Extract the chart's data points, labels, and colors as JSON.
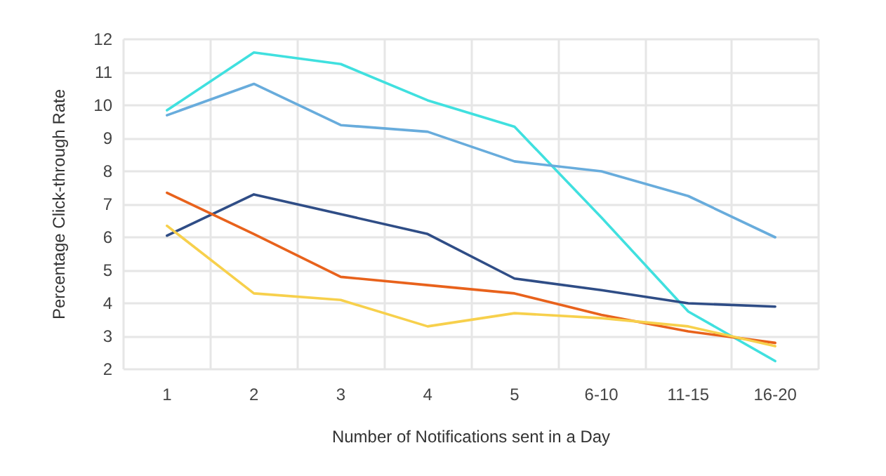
{
  "chart_data": {
    "type": "line",
    "xlabel": "Number of Notifications sent in a Day",
    "ylabel": "Percentage Click-through Rate",
    "categories": [
      "1",
      "2",
      "3",
      "4",
      "5",
      "6-10",
      "11-15",
      "16-20"
    ],
    "series": [
      {
        "color": "#40e0df",
        "values": [
          9.85,
          11.6,
          11.25,
          10.15,
          9.35,
          6.6,
          3.75,
          2.25
        ]
      },
      {
        "color": "#68acdc",
        "values": [
          9.7,
          10.65,
          9.4,
          9.2,
          8.3,
          8.0,
          7.25,
          6.0
        ]
      },
      {
        "color": "#2f4d86",
        "values": [
          6.05,
          7.3,
          6.7,
          6.1,
          4.75,
          4.4,
          4.0,
          3.9
        ]
      },
      {
        "color": "#e8621c",
        "values": [
          7.35,
          6.1,
          4.8,
          4.55,
          4.3,
          3.65,
          3.15,
          2.8
        ]
      },
      {
        "color": "#f7d04c",
        "values": [
          6.35,
          4.3,
          4.1,
          3.3,
          3.7,
          3.55,
          3.3,
          2.7
        ]
      }
    ],
    "ylim": [
      2,
      12
    ],
    "yticks": [
      2,
      3,
      4,
      5,
      6,
      7,
      8,
      9,
      10,
      11,
      12
    ],
    "grid": true,
    "marker": "none",
    "line_style": "solid"
  }
}
